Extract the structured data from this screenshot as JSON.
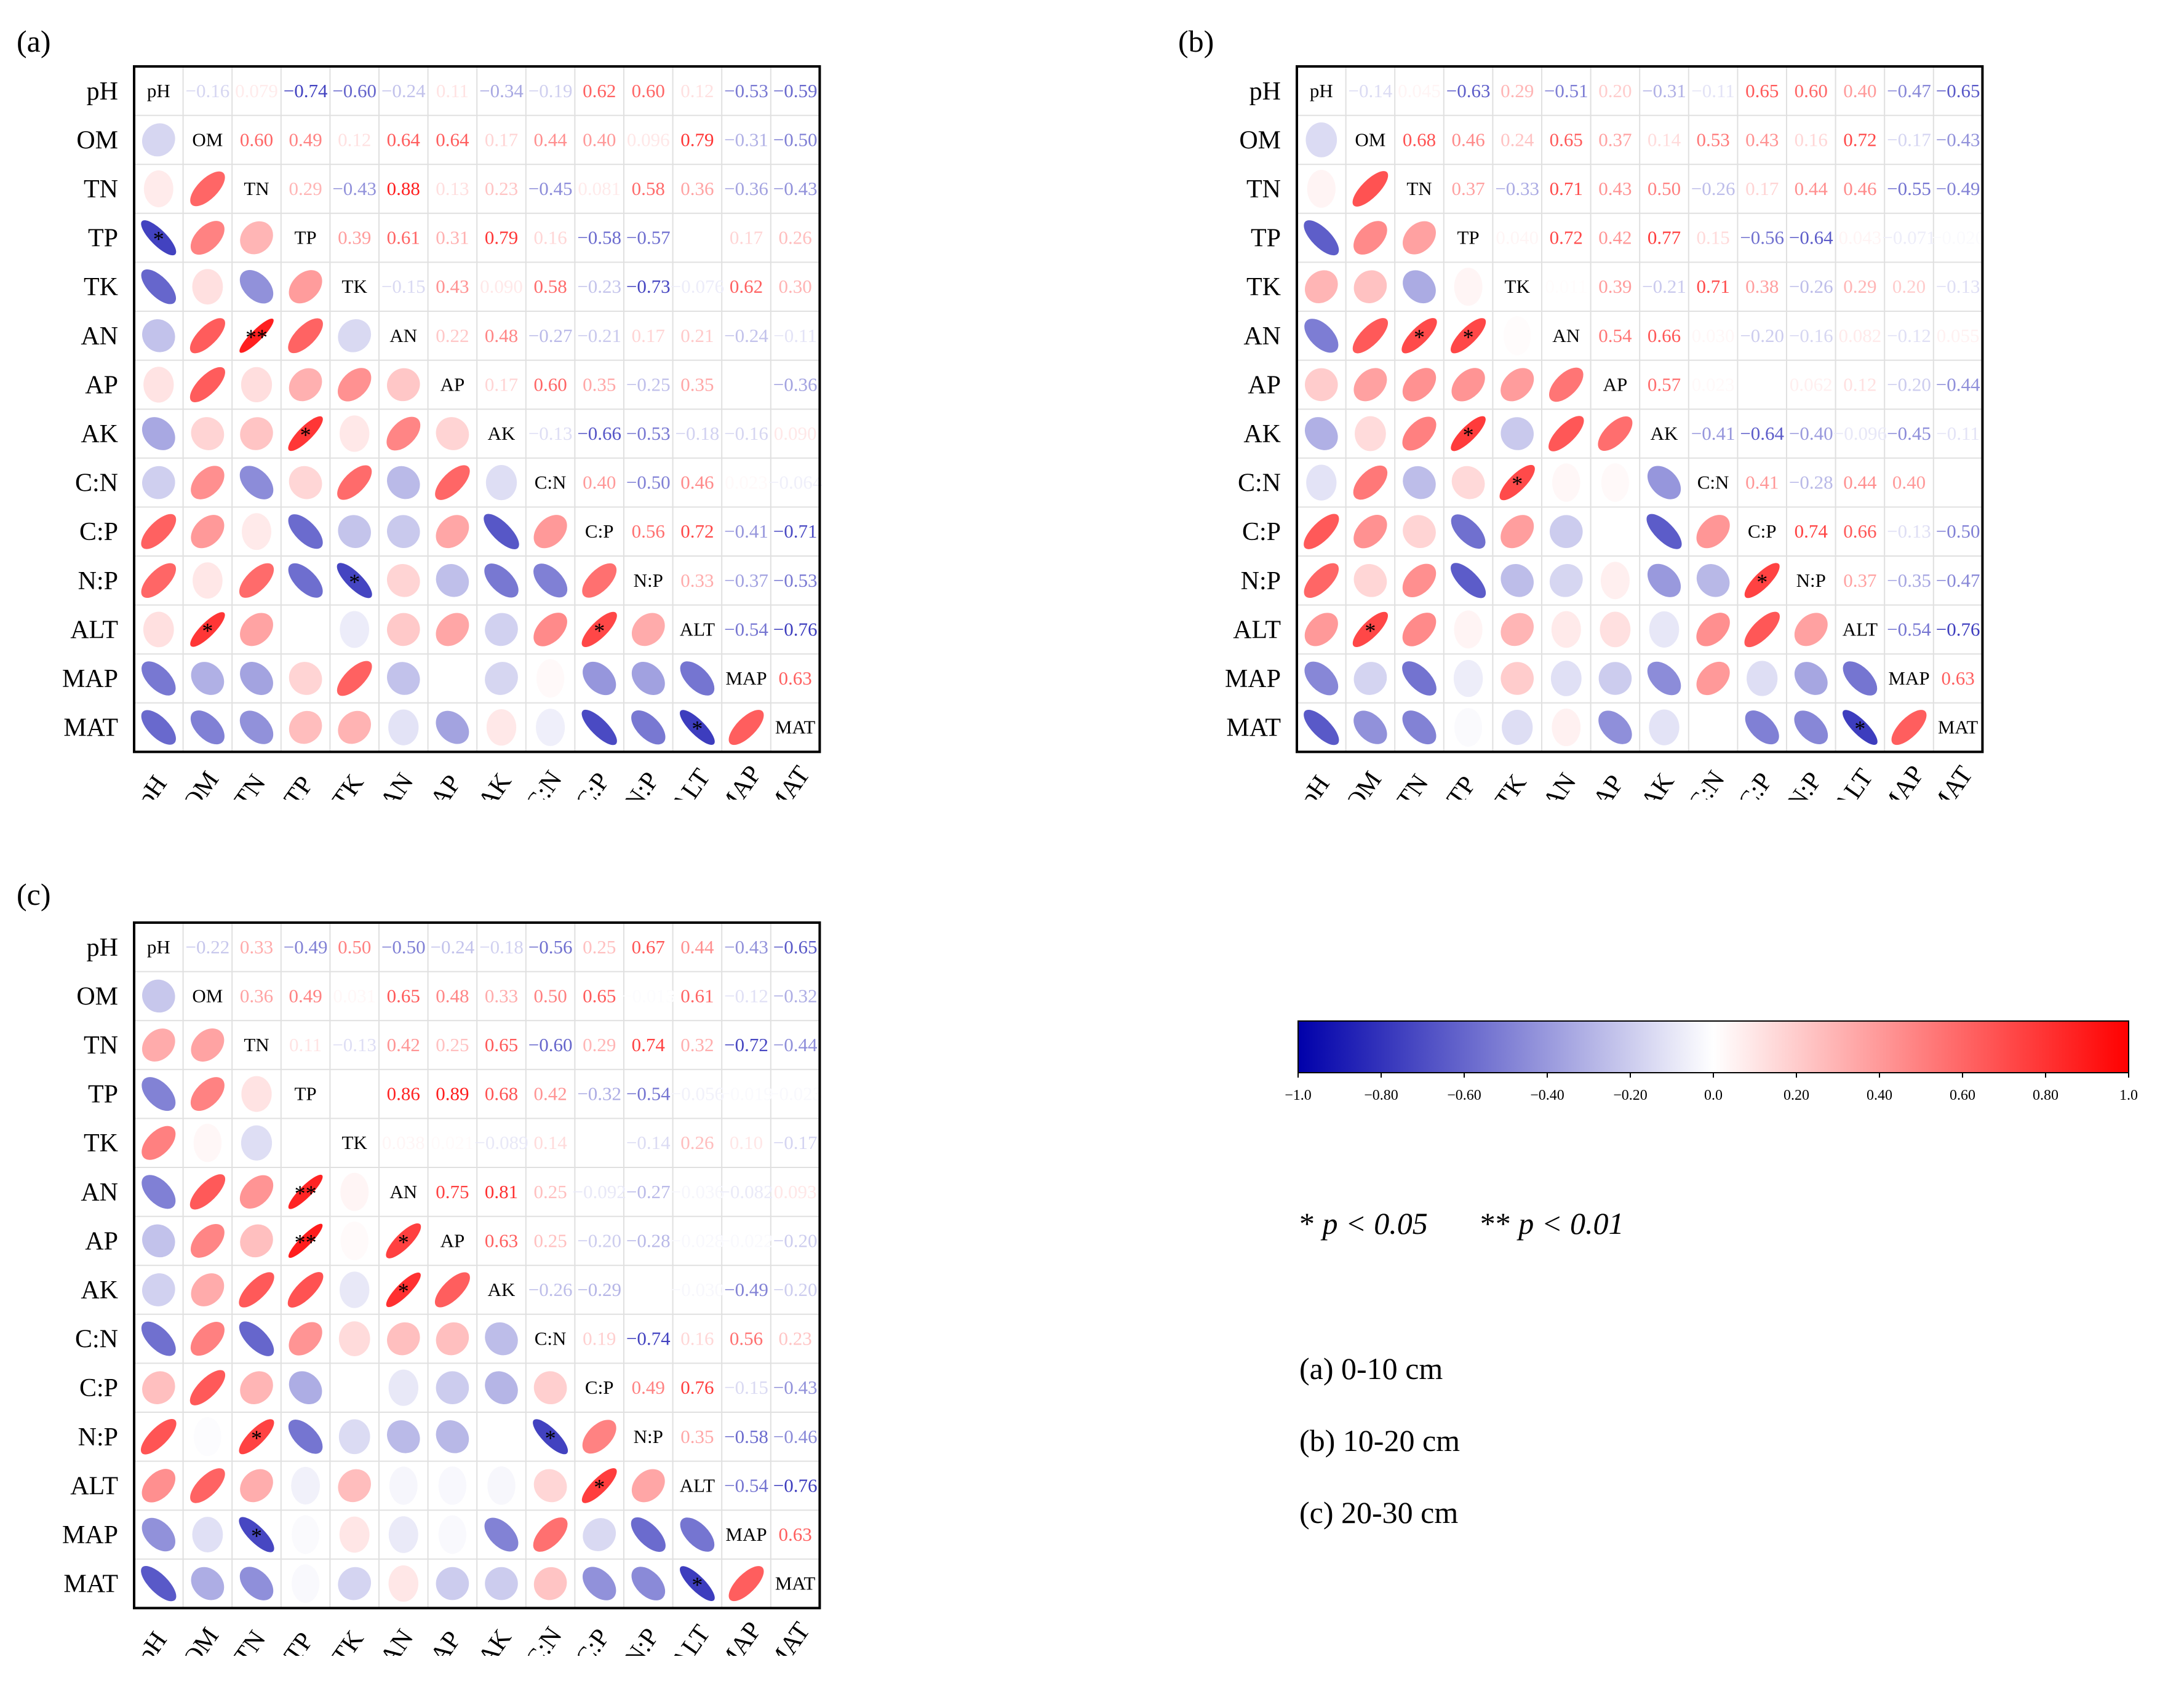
{
  "chart_data": {
    "type": "heatmap",
    "subtype": "correlation-ellipse-matrix",
    "variables": [
      "pH",
      "OM",
      "TN",
      "TP",
      "TK",
      "AN",
      "AP",
      "AK",
      "C:N",
      "C:P",
      "N:P",
      "ALT",
      "MAP",
      "MAT"
    ],
    "colorbar": {
      "min": -1.0,
      "max": 1.0,
      "tick_labels": [
        "−1.0",
        "−0.80",
        "−0.60",
        "−0.40",
        "−0.20",
        "0.0",
        "0.20",
        "0.40",
        "0.60",
        "0.80",
        "1.0"
      ],
      "colors": {
        "negative": "#0000aa",
        "zero": "#ffffff",
        "positive": "#ff0000"
      }
    },
    "significance_note": {
      "single": "* ",
      "single_p": "p < 0.05",
      "double": "** ",
      "double_p": "p < 0.01"
    },
    "panels": [
      {
        "id": "a",
        "letter": "(a)",
        "depth_label": "(a) 0-10 cm",
        "r": [
          [
            1,
            -0.16,
            0.079,
            -0.74,
            -0.6,
            -0.24,
            0.11,
            -0.34,
            -0.19,
            0.62,
            0.6,
            0.12,
            -0.53,
            -0.59
          ],
          [
            -0.16,
            1,
            0.6,
            0.49,
            0.12,
            0.64,
            0.64,
            0.17,
            0.44,
            0.4,
            0.096,
            0.79,
            -0.31,
            -0.5
          ],
          [
            0.079,
            0.6,
            1,
            0.29,
            -0.43,
            0.88,
            0.13,
            0.23,
            -0.45,
            0.081,
            0.58,
            0.36,
            -0.36,
            -0.43
          ],
          [
            -0.74,
            0.49,
            0.29,
            1,
            0.39,
            0.61,
            0.31,
            0.79,
            0.16,
            -0.58,
            -0.57,
            0.0,
            0.17,
            0.26
          ],
          [
            -0.6,
            0.12,
            -0.43,
            0.39,
            1,
            -0.15,
            0.43,
            0.09,
            0.58,
            -0.23,
            -0.73,
            -0.076,
            0.62,
            0.3
          ],
          [
            -0.24,
            0.64,
            0.88,
            0.61,
            -0.15,
            1,
            0.22,
            0.48,
            -0.27,
            -0.21,
            0.17,
            0.21,
            -0.24,
            -0.11
          ],
          [
            0.11,
            0.64,
            0.13,
            0.31,
            0.43,
            0.22,
            1,
            0.17,
            0.6,
            0.35,
            -0.25,
            0.35,
            0.0,
            -0.36
          ],
          [
            -0.34,
            0.17,
            0.23,
            0.79,
            0.09,
            0.48,
            0.17,
            1,
            -0.13,
            -0.66,
            -0.53,
            -0.18,
            -0.16,
            0.09
          ],
          [
            -0.19,
            0.44,
            -0.45,
            0.16,
            0.58,
            -0.27,
            0.6,
            -0.13,
            1,
            0.4,
            -0.5,
            0.46,
            0.023,
            -0.064
          ],
          [
            0.62,
            0.4,
            0.081,
            -0.58,
            -0.23,
            -0.21,
            0.35,
            -0.66,
            0.4,
            1,
            0.56,
            0.72,
            -0.41,
            -0.71
          ],
          [
            0.6,
            0.096,
            0.58,
            -0.57,
            -0.73,
            0.17,
            -0.25,
            -0.53,
            -0.5,
            0.56,
            1,
            0.33,
            -0.37,
            -0.53
          ],
          [
            0.12,
            0.79,
            0.36,
            0.0,
            -0.076,
            0.21,
            0.35,
            -0.18,
            0.46,
            0.72,
            0.33,
            1,
            -0.54,
            -0.76
          ],
          [
            -0.53,
            -0.31,
            -0.36,
            0.17,
            0.62,
            -0.24,
            0.0,
            -0.16,
            0.023,
            -0.41,
            -0.37,
            -0.54,
            1,
            0.63
          ],
          [
            -0.59,
            -0.5,
            -0.43,
            0.26,
            0.3,
            -0.11,
            -0.36,
            0.09,
            -0.064,
            -0.71,
            -0.53,
            -0.76,
            0.63,
            1
          ]
        ],
        "stars": [
          [
            3,
            0,
            "*"
          ],
          [
            5,
            2,
            "**"
          ],
          [
            7,
            3,
            "*"
          ],
          [
            10,
            4,
            "*"
          ],
          [
            11,
            1,
            "*"
          ],
          [
            11,
            9,
            "*"
          ],
          [
            13,
            11,
            "*"
          ]
        ]
      },
      {
        "id": "b",
        "letter": "(b)",
        "depth_label": "(b) 10-20 cm",
        "r": [
          [
            1,
            -0.14,
            0.045,
            -0.63,
            0.29,
            -0.51,
            0.2,
            -0.31,
            -0.11,
            0.65,
            0.6,
            0.4,
            -0.47,
            -0.65
          ],
          [
            -0.14,
            1,
            0.68,
            0.46,
            0.24,
            0.65,
            0.37,
            0.14,
            0.53,
            0.43,
            0.16,
            0.72,
            -0.17,
            -0.43
          ],
          [
            0.045,
            0.68,
            1,
            0.37,
            -0.33,
            0.71,
            0.43,
            0.5,
            -0.26,
            0.17,
            0.44,
            0.46,
            -0.55,
            -0.49
          ],
          [
            -0.63,
            0.46,
            0.37,
            1,
            0.04,
            0.72,
            0.42,
            0.77,
            0.15,
            -0.56,
            -0.64,
            0.043,
            -0.071,
            -0.02
          ],
          [
            0.29,
            0.24,
            -0.33,
            0.04,
            1,
            0.011,
            0.39,
            -0.21,
            0.71,
            0.38,
            -0.26,
            0.29,
            0.2,
            -0.13
          ],
          [
            -0.51,
            0.65,
            0.71,
            0.72,
            0.011,
            1,
            0.54,
            0.66,
            0.03,
            -0.2,
            -0.16,
            0.082,
            -0.12,
            0.055
          ],
          [
            0.2,
            0.37,
            0.43,
            0.42,
            0.39,
            0.54,
            1,
            0.57,
            0.023,
            0.0,
            0.062,
            0.12,
            -0.2,
            -0.44
          ],
          [
            -0.31,
            0.14,
            0.5,
            0.77,
            -0.21,
            0.66,
            0.57,
            1,
            -0.41,
            -0.64,
            -0.4,
            -0.096,
            -0.45,
            -0.11
          ],
          [
            -0.11,
            0.53,
            -0.26,
            0.15,
            0.71,
            0.03,
            0.023,
            -0.41,
            1,
            0.41,
            -0.28,
            0.44,
            0.4,
            0.0
          ],
          [
            0.65,
            0.43,
            0.17,
            -0.56,
            0.38,
            -0.2,
            0.0,
            -0.64,
            0.41,
            1,
            0.74,
            0.66,
            -0.13,
            -0.5
          ],
          [
            0.6,
            0.16,
            0.44,
            -0.64,
            -0.26,
            -0.16,
            0.062,
            -0.4,
            -0.28,
            0.74,
            1,
            0.37,
            -0.35,
            -0.47
          ],
          [
            0.4,
            0.72,
            0.46,
            0.043,
            0.29,
            0.082,
            0.12,
            -0.096,
            0.44,
            0.66,
            0.37,
            1,
            -0.54,
            -0.76
          ],
          [
            -0.47,
            -0.17,
            -0.55,
            -0.071,
            0.2,
            -0.12,
            -0.2,
            -0.45,
            0.4,
            -0.13,
            -0.35,
            -0.54,
            1,
            0.63
          ],
          [
            -0.65,
            -0.43,
            -0.49,
            -0.02,
            -0.13,
            0.055,
            -0.44,
            -0.11,
            0.0,
            -0.5,
            -0.47,
            -0.76,
            0.63,
            1
          ]
        ],
        "stars": [
          [
            5,
            2,
            "*"
          ],
          [
            5,
            3,
            "*"
          ],
          [
            7,
            3,
            "*"
          ],
          [
            8,
            4,
            "*"
          ],
          [
            10,
            9,
            "*"
          ],
          [
            11,
            1,
            "*"
          ],
          [
            13,
            11,
            "*"
          ]
        ]
      },
      {
        "id": "c",
        "letter": "(c)",
        "depth_label": "(c) 20-30 cm",
        "r": [
          [
            1,
            -0.22,
            0.33,
            -0.49,
            0.5,
            -0.5,
            -0.24,
            -0.18,
            -0.56,
            0.25,
            0.67,
            0.44,
            -0.43,
            -0.65
          ],
          [
            -0.22,
            1,
            0.36,
            0.49,
            0.031,
            0.65,
            0.48,
            0.33,
            0.5,
            0.65,
            -0.013,
            0.61,
            -0.12,
            -0.32
          ],
          [
            0.33,
            0.36,
            1,
            0.11,
            -0.13,
            0.42,
            0.25,
            0.65,
            -0.6,
            0.29,
            0.74,
            0.32,
            -0.72,
            -0.44
          ],
          [
            -0.49,
            0.49,
            0.11,
            1,
            0.0,
            0.86,
            0.89,
            0.68,
            0.42,
            -0.32,
            -0.54,
            -0.056,
            -0.019,
            -0.023
          ],
          [
            0.5,
            0.031,
            -0.13,
            0.0,
            1,
            0.038,
            0.021,
            -0.089,
            0.14,
            0.0,
            -0.14,
            0.26,
            0.1,
            -0.17
          ],
          [
            -0.5,
            0.65,
            0.42,
            0.86,
            0.038,
            1,
            0.75,
            0.81,
            0.25,
            -0.092,
            -0.27,
            -0.036,
            -0.082,
            0.093
          ],
          [
            -0.24,
            0.48,
            0.25,
            0.89,
            0.021,
            0.75,
            1,
            0.63,
            0.25,
            -0.2,
            -0.28,
            -0.028,
            -0.022,
            -0.2
          ],
          [
            -0.18,
            0.33,
            0.65,
            0.68,
            -0.089,
            0.81,
            0.63,
            1,
            -0.26,
            -0.29,
            0.0,
            -0.03,
            -0.49,
            -0.2
          ],
          [
            -0.56,
            0.5,
            -0.6,
            0.42,
            0.14,
            0.25,
            0.25,
            -0.26,
            1,
            0.19,
            -0.74,
            0.16,
            0.56,
            0.23
          ],
          [
            0.25,
            0.65,
            0.29,
            -0.32,
            0.0,
            -0.092,
            -0.2,
            -0.29,
            0.19,
            1,
            0.49,
            0.76,
            -0.15,
            -0.43
          ],
          [
            0.67,
            -0.013,
            0.74,
            -0.54,
            -0.14,
            -0.27,
            -0.28,
            0.0,
            -0.74,
            0.49,
            1,
            0.35,
            -0.58,
            -0.46
          ],
          [
            0.44,
            0.61,
            0.32,
            -0.056,
            0.26,
            -0.036,
            -0.028,
            -0.03,
            0.16,
            0.76,
            0.35,
            1,
            -0.54,
            -0.76
          ],
          [
            -0.43,
            -0.12,
            -0.72,
            -0.019,
            0.1,
            -0.082,
            -0.022,
            -0.49,
            0.56,
            -0.15,
            -0.58,
            -0.54,
            1,
            0.63
          ],
          [
            -0.65,
            -0.32,
            -0.44,
            -0.023,
            -0.17,
            0.093,
            -0.2,
            -0.2,
            0.23,
            -0.43,
            -0.46,
            -0.76,
            0.63,
            1
          ]
        ],
        "stars": [
          [
            5,
            3,
            "**"
          ],
          [
            6,
            3,
            "**"
          ],
          [
            6,
            5,
            "*"
          ],
          [
            7,
            5,
            "*"
          ],
          [
            10,
            2,
            "*"
          ],
          [
            10,
            8,
            "*"
          ],
          [
            11,
            9,
            "*"
          ],
          [
            12,
            2,
            "*"
          ],
          [
            13,
            11,
            "*"
          ]
        ]
      }
    ]
  }
}
